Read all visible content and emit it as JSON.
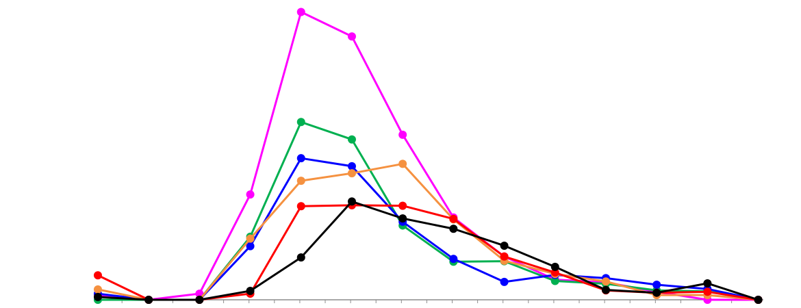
{
  "chart_data": {
    "type": "line",
    "title": "",
    "xlabel": "",
    "ylabel": "",
    "x": [
      1,
      2,
      3,
      4,
      5,
      6,
      7,
      8,
      9,
      10,
      11,
      12,
      13,
      14
    ],
    "xlim": [
      0.96,
      14.1
    ],
    "ylim": [
      0,
      0.062
    ],
    "grid": false,
    "legend": "none",
    "series": [
      {
        "color": "#ff00ff",
        "values": [
          0.001,
          0.0,
          0.0013,
          0.0224,
          0.0612,
          0.056,
          0.0351,
          0.0175,
          0.0092,
          0.0043,
          0.0037,
          0.0017,
          0.0,
          0.0
        ]
      },
      {
        "color": "#00b050",
        "values": [
          0.0,
          0.0,
          0.0,
          0.0134,
          0.0378,
          0.0341,
          0.0158,
          0.0081,
          0.0082,
          0.004,
          0.0034,
          0.002,
          0.0018,
          0.0
        ]
      },
      {
        "color": "#0000ff",
        "values": [
          0.0013,
          0.0,
          0.0,
          0.0114,
          0.0301,
          0.0284,
          0.0166,
          0.0087,
          0.0038,
          0.0053,
          0.0046,
          0.0032,
          0.0023,
          0.0
        ]
      },
      {
        "color": "#f59140",
        "values": [
          0.0022,
          0.0,
          0.0,
          0.013,
          0.0253,
          0.0269,
          0.0289,
          0.0171,
          0.0083,
          0.0055,
          0.0039,
          0.001,
          0.001,
          0.0
        ]
      },
      {
        "color": "#ff0000",
        "values": [
          0.0052,
          0.0,
          0.0,
          0.0013,
          0.0199,
          0.0201,
          0.02,
          0.0172,
          0.0092,
          0.0058,
          0.002,
          0.0015,
          0.0017,
          0.0
        ]
      },
      {
        "color": "#000000",
        "values": [
          0.0006,
          0.0,
          0.0,
          0.0019,
          0.009,
          0.0209,
          0.0173,
          0.0151,
          0.0115,
          0.007,
          0.0021,
          0.0015,
          0.0035,
          0.0
        ]
      }
    ]
  }
}
